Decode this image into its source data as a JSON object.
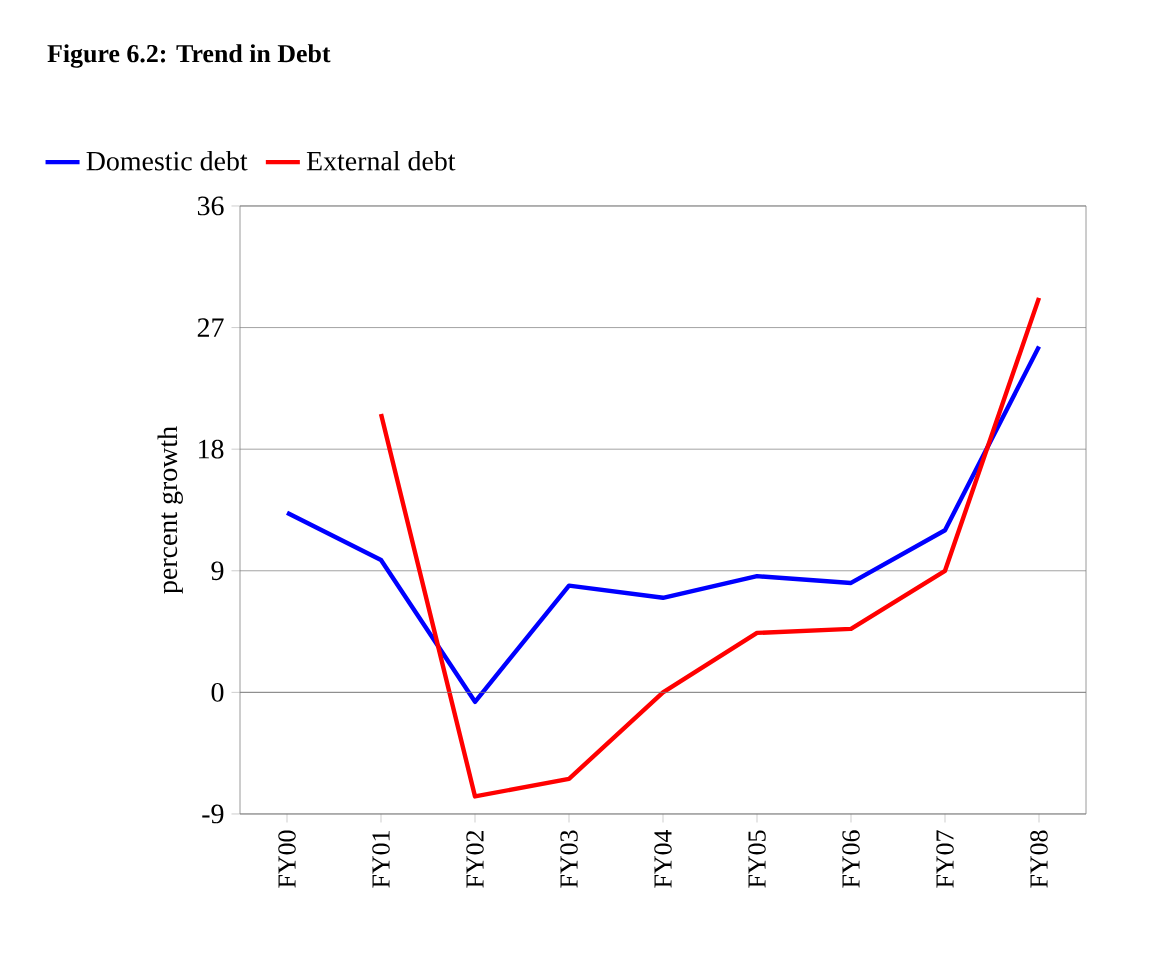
{
  "chart_data": {
    "type": "line",
    "title": "Figure 6.2: Trend in Debt",
    "ylabel": "percent growth",
    "categories": [
      "FY00",
      "FY01",
      "FY02",
      "FY03",
      "FY04",
      "FY05",
      "FY06",
      "FY07",
      "FY08"
    ],
    "series": [
      {
        "name": "Domestic debt",
        "color": "#0000ff",
        "values": [
          13.3,
          9.8,
          -0.7,
          7.9,
          7.0,
          8.6,
          8.1,
          12.0,
          25.6
        ]
      },
      {
        "name": "External debt",
        "color": "#ff0000",
        "values": [
          null,
          20.6,
          -7.7,
          -6.4,
          0.0,
          4.4,
          4.7,
          9.0,
          29.2
        ]
      }
    ],
    "ylim": [
      -9,
      36
    ],
    "yticks": [
      -9,
      0,
      9,
      18,
      27,
      36
    ],
    "grid": "y",
    "legend": "top",
    "marker": "none",
    "line_style": "solid"
  }
}
